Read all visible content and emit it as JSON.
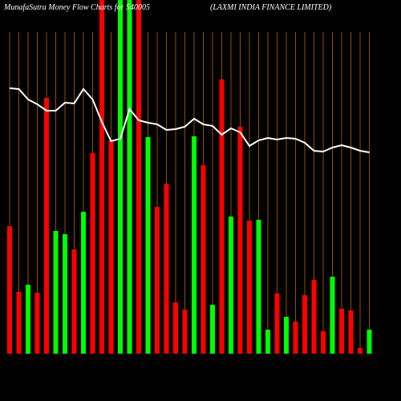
{
  "chart_data": {
    "type": "money-flow",
    "title": "MunafaSutra  Money Flow  Charts for 540005",
    "subtitle": "(LAXMI INDIA FINANCE LIMITED)",
    "background": "#000000",
    "guide_color": "#b8620a",
    "categories": [
      null,
      null,
      null,
      null,
      null,
      null,
      null,
      null,
      null,
      null,
      null,
      null,
      null,
      null,
      null,
      null,
      null,
      null,
      null,
      null,
      null,
      null,
      null,
      null,
      null,
      null,
      null,
      null,
      null,
      null,
      null,
      null,
      null,
      null,
      null,
      null,
      null,
      null,
      null,
      null
    ],
    "ylim": [
      0,
      441
    ],
    "bars": {
      "values": [
        159,
        77,
        86,
        76,
        319,
        153,
        149,
        130,
        177,
        250,
        441,
        266,
        441,
        441,
        441,
        270,
        183,
        212,
        64,
        55,
        271,
        235,
        61,
        342,
        171,
        283,
        166,
        167,
        30,
        75,
        46,
        40,
        73,
        92,
        28,
        96,
        56,
        54,
        7,
        30
      ],
      "colors": [
        "#ff0000",
        "#ff0000",
        "#00ff00",
        "#ff0000",
        "#ff0000",
        "#00ff00",
        "#00ff00",
        "#ff0000",
        "#00ff00",
        "#ff0000",
        "#ff0000",
        "#ff0000",
        "#00ff00",
        "#00ff00",
        "#ff0000",
        "#00ff00",
        "#ff0000",
        "#ff0000",
        "#ff0000",
        "#ff0000",
        "#00ff00",
        "#ff0000",
        "#00ff00",
        "#ff0000",
        "#00ff00",
        "#ff0000",
        "#ff0000",
        "#00ff00",
        "#00ff00",
        "#ff0000",
        "#00ff00",
        "#ff0000",
        "#ff0000",
        "#ff0000",
        "#ff0000",
        "#00ff00",
        "#ff0000",
        "#ff0000",
        "#ff0000",
        "#00ff00"
      ]
    },
    "line": {
      "color": "#ffffff",
      "values": [
        331,
        330,
        317,
        311,
        303,
        303,
        313,
        312,
        330,
        317,
        289,
        265,
        268,
        305,
        291,
        288,
        286,
        279,
        280,
        283,
        293,
        286,
        284,
        273,
        281,
        276,
        259,
        266,
        269,
        267,
        269,
        268,
        263,
        253,
        252,
        257,
        260,
        257,
        253,
        251
      ]
    }
  }
}
